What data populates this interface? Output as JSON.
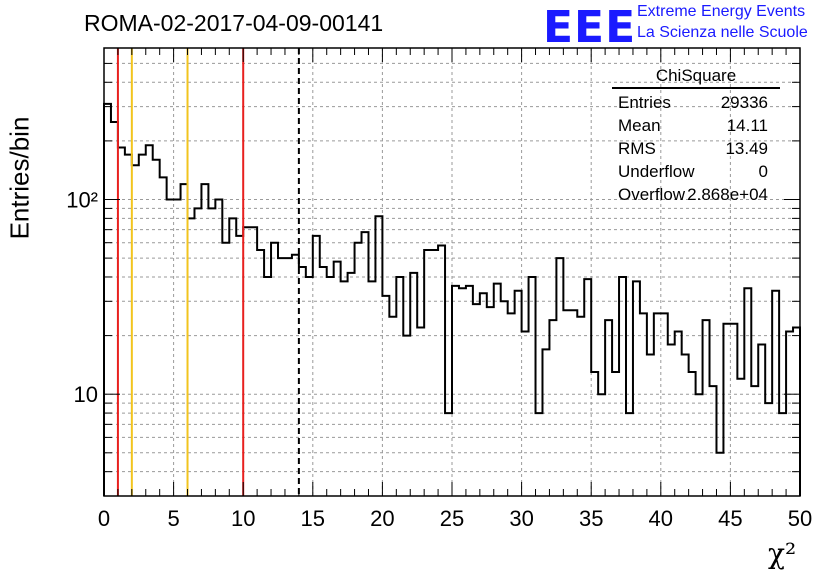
{
  "chart_data": {
    "type": "histogram",
    "title": "ROMA-02-2017-04-09-00141",
    "xlabel": "χ²",
    "ylabel": "Entries/bin",
    "xlim": [
      0,
      50
    ],
    "ylim": [
      3,
      600
    ],
    "yscale": "log",
    "grid": true,
    "bin_width": 0.5,
    "x_ticks": [
      0,
      5,
      10,
      15,
      20,
      25,
      30,
      35,
      40,
      45,
      50
    ],
    "x_tick_labels": [
      "0",
      "5",
      "10",
      "15",
      "20",
      "25",
      "30",
      "35",
      "40",
      "45",
      "50"
    ],
    "y_tick_labels": [
      {
        "value": 10,
        "label": "10"
      },
      {
        "value": 100,
        "label": "10²"
      }
    ],
    "values": [
      310,
      250,
      185,
      170,
      150,
      170,
      190,
      160,
      130,
      100,
      100,
      120,
      80,
      90,
      120,
      90,
      100,
      60,
      80,
      65,
      72,
      72,
      55,
      40,
      60,
      50,
      50,
      52,
      45,
      40,
      65,
      45,
      40,
      48,
      38,
      42,
      60,
      68,
      38,
      82,
      32,
      25,
      40,
      20,
      42,
      22,
      55,
      55,
      58,
      8,
      36,
      35,
      36,
      29,
      33,
      28,
      37,
      30,
      26,
      34,
      21,
      40,
      8,
      17,
      24,
      50,
      27,
      27,
      25,
      39,
      13,
      10,
      24,
      13,
      40,
      8,
      38,
      26,
      16,
      26,
      26,
      18,
      21,
      16,
      13,
      10,
      24,
      11,
      5,
      23,
      23,
      12,
      35,
      11,
      18,
      9,
      34,
      8,
      21,
      22
    ],
    "vertical_lines": [
      {
        "x": 1,
        "color": "#e8201e",
        "style": "solid"
      },
      {
        "x": 2,
        "color": "#f2c41e",
        "style": "solid"
      },
      {
        "x": 6,
        "color": "#f2c41e",
        "style": "solid"
      },
      {
        "x": 10,
        "color": "#e8201e",
        "style": "solid"
      },
      {
        "x": 14,
        "color": "#000000",
        "style": "dashed"
      }
    ]
  },
  "logo": {
    "mark": "EEE",
    "line1": "Extreme Energy Events",
    "line2": "La Scienza nelle Scuole",
    "color": "#1a1aff"
  },
  "stats": {
    "title": "ChiSquare",
    "rows": [
      {
        "label": "Entries",
        "value": "29336"
      },
      {
        "label": "Mean",
        "value": "14.11"
      },
      {
        "label": "RMS",
        "value": "13.49"
      },
      {
        "label": "Underflow",
        "value": "0"
      },
      {
        "label": "Overflow",
        "value": "2.868e+04"
      }
    ]
  }
}
